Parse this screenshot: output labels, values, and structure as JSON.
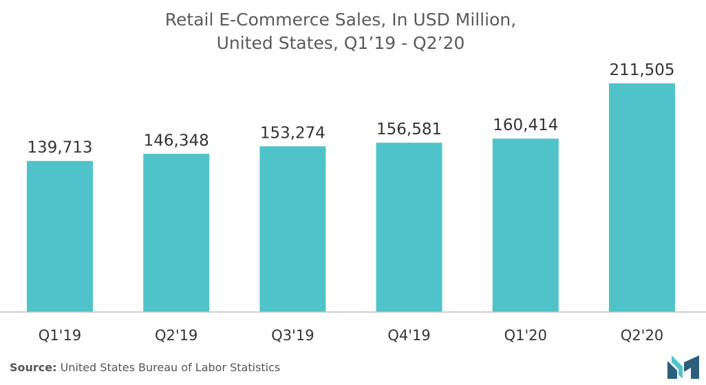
{
  "chart_data": {
    "type": "bar",
    "title_lines": [
      "Retail E-Commerce Sales, In USD Million,",
      "United States, Q1’19 - Q2’20"
    ],
    "categories": [
      "Q1'19",
      "Q2'19",
      "Q3'19",
      "Q4'19",
      "Q1'20",
      "Q2'20"
    ],
    "values": [
      139713,
      146348,
      153274,
      156581,
      160414,
      211505
    ],
    "value_labels": [
      "139,713",
      "146,348",
      "153,274",
      "156,581",
      "160,414",
      "211,505"
    ],
    "xlabel": "",
    "ylabel": "",
    "ylim": [
      0,
      211505
    ],
    "grid": false,
    "legend": "none",
    "bar_color": "#4fc3c9",
    "axis_color": "#bfbfbf"
  },
  "source": {
    "label": "Source:",
    "text": "United States Bureau of Labor Statistics"
  },
  "logo": {
    "icon": "mordor-intelligence-logo-icon",
    "color_dark": "#2c5f7c",
    "color_light": "#4fc3c9"
  }
}
